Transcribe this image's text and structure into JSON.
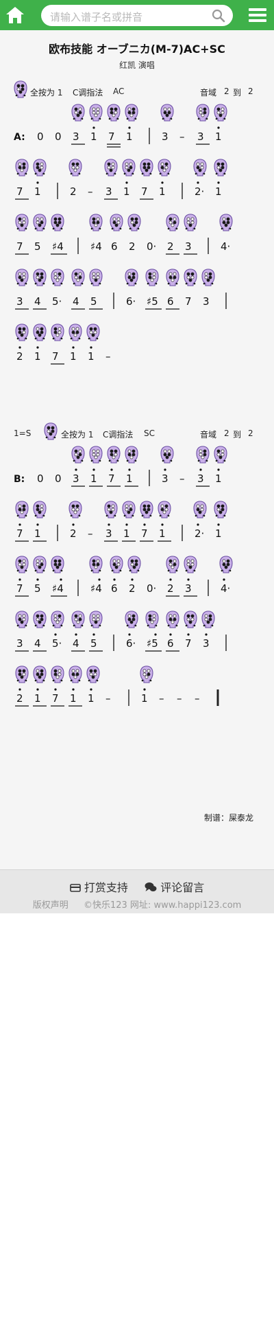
{
  "topbar": {
    "search_placeholder": "请输入谱子名或拼音",
    "home_icon": "home-icon",
    "search_icon": "search-icon",
    "menu_icon": "menu-icon",
    "accent": "#3fb14a"
  },
  "song": {
    "title": "欧布技能 オーブニカ(M-7)AC+SC",
    "singer": "红凯 演唱"
  },
  "header_a": {
    "fingering": "全按为 1",
    "mode": "C调指法",
    "tag": "AC",
    "range_label": "音域",
    "range_low": "2",
    "range_to": "到",
    "range_high": "2"
  },
  "header_b": {
    "key": "1=S",
    "fingering": "全按为 1",
    "mode": "C调指法",
    "tag": "SC",
    "range_label": "音域",
    "range_low": "2",
    "range_to": "到",
    "range_high": "2"
  },
  "section_labels": {
    "a": "A:",
    "b": "B:"
  },
  "maker": "制谱：屎泰龙",
  "footer": {
    "donate": "打赏支持",
    "comment": "评论留言",
    "copyright": "版权声明",
    "site": "©快乐123 网址: www.happi123.com"
  },
  "colors": {
    "ocarina_fill": "#c9b0e8",
    "ocarina_stroke": "#6b4fa3",
    "page_bg": "#f5f5f5",
    "footer_bg": "#e7e7e7"
  },
  "score": {
    "A": [
      [
        [
          "0",
          ""
        ],
        [
          "0",
          ""
        ],
        [
          "3",
          "u"
        ],
        [
          "1",
          "o"
        ],
        [
          "7",
          "l"
        ],
        [
          "1",
          "o"
        ],
        [
          "|",
          ""
        ],
        [
          "3",
          ""
        ],
        [
          "–",
          ""
        ],
        [
          "3",
          "u"
        ],
        [
          "1",
          "o"
        ]
      ],
      [
        [
          "7",
          "u"
        ],
        [
          "1",
          "o"
        ],
        [
          "|",
          ""
        ],
        [
          "2",
          ""
        ],
        [
          "–",
          ""
        ],
        [
          "3",
          "u"
        ],
        [
          "1",
          "o"
        ],
        [
          "7",
          "u"
        ],
        [
          "1",
          "o"
        ],
        [
          "|",
          ""
        ],
        [
          "2·",
          "o"
        ],
        [
          "1",
          "o"
        ]
      ],
      [
        [
          "7",
          "u"
        ],
        [
          "5",
          ""
        ],
        [
          "♯4",
          "u"
        ],
        [
          "|",
          ""
        ],
        [
          "♯4",
          ""
        ],
        [
          "6",
          ""
        ],
        [
          "2",
          ""
        ],
        [
          "0·",
          ""
        ],
        [
          "2",
          "u"
        ],
        [
          "3",
          "u"
        ],
        [
          "|",
          ""
        ],
        [
          "4·",
          ""
        ]
      ],
      [
        [
          "3",
          "u"
        ],
        [
          "4",
          "u"
        ],
        [
          "5·",
          ""
        ],
        [
          "4",
          "u"
        ],
        [
          "5",
          "u"
        ],
        [
          "|",
          ""
        ],
        [
          "6·",
          ""
        ],
        [
          "♯5",
          "u"
        ],
        [
          "6",
          "u"
        ],
        [
          "7",
          ""
        ],
        [
          "3",
          ""
        ],
        [
          "|",
          ""
        ]
      ],
      [
        [
          "2",
          "o"
        ],
        [
          "1",
          "o"
        ],
        [
          "7",
          "u"
        ],
        [
          "1",
          "o"
        ],
        [
          "1",
          "o"
        ],
        [
          "–",
          ""
        ]
      ]
    ],
    "B": [
      [
        [
          "0",
          ""
        ],
        [
          "0",
          ""
        ],
        [
          "3",
          "uo"
        ],
        [
          "1",
          "uo"
        ],
        [
          "7",
          "uo"
        ],
        [
          "1",
          "uo"
        ],
        [
          "|",
          ""
        ],
        [
          "3",
          "o"
        ],
        [
          "–",
          ""
        ],
        [
          "3",
          "uo"
        ],
        [
          "1",
          "o"
        ]
      ],
      [
        [
          "7",
          "uo"
        ],
        [
          "1",
          "uo"
        ],
        [
          "|",
          ""
        ],
        [
          "2",
          "o"
        ],
        [
          "–",
          ""
        ],
        [
          "3",
          "uo"
        ],
        [
          "1",
          "uo"
        ],
        [
          "7",
          "uo"
        ],
        [
          "1",
          "uo"
        ],
        [
          "|",
          ""
        ],
        [
          "2·",
          "o"
        ],
        [
          "1",
          "o"
        ]
      ],
      [
        [
          "7",
          "uo"
        ],
        [
          "5",
          "o"
        ],
        [
          "♯4",
          "uo"
        ],
        [
          "|",
          ""
        ],
        [
          "♯4",
          "o"
        ],
        [
          "6",
          "o"
        ],
        [
          "2",
          "o"
        ],
        [
          "0·",
          ""
        ],
        [
          "2",
          "uo"
        ],
        [
          "3",
          "uo"
        ],
        [
          "|",
          ""
        ],
        [
          "4·",
          "o"
        ]
      ],
      [
        [
          "3",
          "u"
        ],
        [
          "4",
          "u"
        ],
        [
          "5·",
          "o"
        ],
        [
          "4",
          "uo"
        ],
        [
          "5",
          "uo"
        ],
        [
          "|",
          ""
        ],
        [
          "6·",
          "o"
        ],
        [
          "♯5",
          "uo"
        ],
        [
          "6",
          "uo"
        ],
        [
          "7",
          "o"
        ],
        [
          "3",
          "o"
        ],
        [
          "|",
          ""
        ]
      ],
      [
        [
          "2",
          "uo"
        ],
        [
          "1",
          "uo"
        ],
        [
          "7",
          "uo"
        ],
        [
          "1",
          "uo"
        ],
        [
          "1",
          "o"
        ],
        [
          "–",
          ""
        ],
        [
          "|",
          ""
        ],
        [
          "1",
          "o"
        ],
        [
          "–",
          ""
        ],
        [
          "–",
          ""
        ],
        [
          "–",
          ""
        ],
        [
          "‖",
          ""
        ]
      ]
    ]
  }
}
